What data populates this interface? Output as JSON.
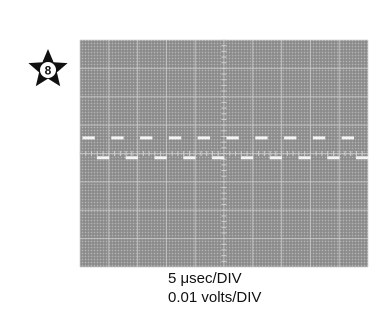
{
  "badge": {
    "number": "8",
    "icon": "star-badge-icon"
  },
  "chart_data": {
    "type": "line",
    "title": "",
    "xlabel": "",
    "ylabel": "",
    "x_divisions": 10,
    "y_divisions": 8,
    "xlim": [
      0,
      10
    ],
    "ylim": [
      -4,
      4
    ],
    "grid": true,
    "subdivision_ticks_per_division": 5,
    "series": [
      {
        "waveform": "square",
        "period_div": 1.0,
        "duty_cycle": 0.5,
        "high_div": 0.55,
        "low_div": -0.15,
        "x_start_div": 0.05,
        "x_end_div": 10.3,
        "color": "#f4f4f4"
      }
    ]
  },
  "captions": {
    "time_base": "5 μsec/DIV",
    "volts_scale": "0.01 volts/DIV"
  },
  "colors": {
    "screen": "#8e8e8e",
    "grid": "#cfcfcf",
    "trace": "#f4f4f4",
    "ink": "#111111"
  }
}
